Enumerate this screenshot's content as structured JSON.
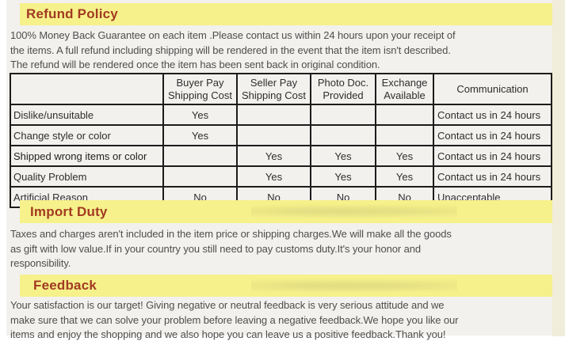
{
  "sections": {
    "refund": {
      "title": "Refund Policy",
      "body": "100% Money Back Guarantee on each item .Please contact us within 24 hours upon your receipt of\nthe items. A full refund including shipping will be rendered in the event that the item isn't described.\nThe refund will be rendered once the item has been sent back in original condition."
    },
    "import_duty": {
      "title": "Import Duty",
      "body": "Taxes and charges aren't included in the item price or shipping charges.We will make all the goods\nas gift with low value.If in your country you still need to pay customs duty.It's your honor and\nresponsibility."
    },
    "feedback": {
      "title": "Feedback",
      "body": "Your satisfaction is our target! Giving negative or neutral feedback is very serious attitude and we\nmake sure that we can solve your problem before leaving a negative feedback.We hope you like our\nitems and enjoy the shopping and we also hope you can leave us a positive feedback.Thank you!"
    }
  },
  "refund_table": {
    "headers": [
      "",
      "Buyer Pay Shipping Cost",
      "Seller Pay Shipping Cost",
      "Photo Doc. Provided",
      "Exchange Available",
      "Communication"
    ],
    "rows": [
      [
        "Dislike/unsuitable",
        "Yes",
        "",
        "",
        "",
        "Contact us in 24 hours"
      ],
      [
        "Change style or color",
        "Yes",
        "",
        "",
        "",
        "Contact us in 24 hours"
      ],
      [
        "Shipped wrong items or color",
        "",
        "Yes",
        "Yes",
        "Yes",
        "Contact us in 24 hours"
      ],
      [
        "Quality Problem",
        "",
        "Yes",
        "Yes",
        "Yes",
        "Contact us in 24 hours"
      ],
      [
        "Artificial Reason",
        "No",
        "No",
        "No",
        "No",
        "Unacceptable"
      ]
    ]
  },
  "colors": {
    "banner_background": "#f6f18a",
    "heading_text": "#a23a23",
    "body_text": "#4e4e4e",
    "table_border": "#1c1c1c",
    "content_background": "#f2f1ee",
    "side_strip": "#f0edda"
  }
}
